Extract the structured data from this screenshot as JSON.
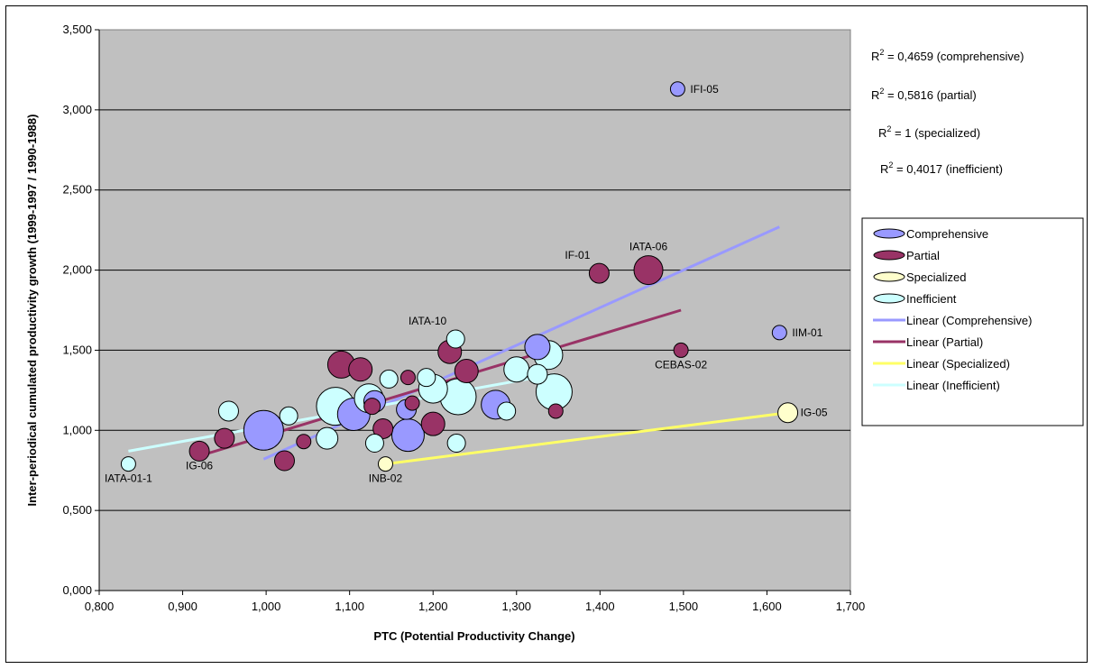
{
  "chart_data": {
    "type": "scatter",
    "xlabel": "PTC (Potential Productivity Change)",
    "ylabel": "Inter-periodical cumulated productivity growth (1999-1997 / 1990-1988)",
    "xlim": [
      0.8,
      1.7
    ],
    "ylim": [
      0.0,
      3.5
    ],
    "x_ticks": [
      "0,800",
      "0,900",
      "1,000",
      "1,100",
      "1,200",
      "1,300",
      "1,400",
      "1,500",
      "1,600",
      "1,700"
    ],
    "y_ticks": [
      "0,000",
      "0,500",
      "1,000",
      "1,500",
      "2,000",
      "2,500",
      "3,000",
      "3,500"
    ],
    "grid": "horizontal",
    "legend_position": "right",
    "colors": {
      "plot_bg": "#c0c0c0",
      "comprehensive": "#9999ff",
      "partial": "#993366",
      "specialized": "#ffffcc",
      "inefficient": "#ccffff",
      "linear_comprehensive": "#9999ff",
      "linear_partial": "#993366",
      "linear_specialized": "#ffff66",
      "linear_inefficient": "#ccffff"
    },
    "series": [
      {
        "name": "Comprehensive",
        "color": "#9999ff",
        "points": [
          {
            "x": 0.997,
            "y": 1.0,
            "size": 22
          },
          {
            "x": 1.105,
            "y": 1.1,
            "size": 18
          },
          {
            "x": 1.13,
            "y": 1.18,
            "size": 12
          },
          {
            "x": 1.168,
            "y": 1.13,
            "size": 11
          },
          {
            "x": 1.17,
            "y": 0.97,
            "size": 18
          },
          {
            "x": 1.275,
            "y": 1.16,
            "size": 16
          },
          {
            "x": 1.325,
            "y": 1.52,
            "size": 14
          },
          {
            "x": 1.493,
            "y": 3.13,
            "size": 8
          },
          {
            "x": 1.615,
            "y": 1.61,
            "size": 8
          }
        ]
      },
      {
        "name": "Partial",
        "color": "#993366",
        "points": [
          {
            "x": 0.92,
            "y": 0.87,
            "size": 11
          },
          {
            "x": 0.95,
            "y": 0.95,
            "size": 11
          },
          {
            "x": 1.022,
            "y": 0.81,
            "size": 11
          },
          {
            "x": 1.045,
            "y": 0.93,
            "size": 8
          },
          {
            "x": 1.09,
            "y": 1.41,
            "size": 15
          },
          {
            "x": 1.113,
            "y": 1.38,
            "size": 13
          },
          {
            "x": 1.127,
            "y": 1.15,
            "size": 9
          },
          {
            "x": 1.14,
            "y": 1.01,
            "size": 11
          },
          {
            "x": 1.17,
            "y": 1.33,
            "size": 8
          },
          {
            "x": 1.175,
            "y": 1.17,
            "size": 8
          },
          {
            "x": 1.2,
            "y": 1.04,
            "size": 13
          },
          {
            "x": 1.22,
            "y": 1.49,
            "size": 13
          },
          {
            "x": 1.24,
            "y": 1.37,
            "size": 13
          },
          {
            "x": 1.347,
            "y": 1.12,
            "size": 8
          },
          {
            "x": 1.399,
            "y": 1.98,
            "size": 11
          },
          {
            "x": 1.458,
            "y": 2.0,
            "size": 16
          },
          {
            "x": 1.497,
            "y": 1.5,
            "size": 8
          }
        ]
      },
      {
        "name": "Specialized",
        "color": "#ffffcc",
        "points": [
          {
            "x": 1.143,
            "y": 0.79,
            "size": 8
          },
          {
            "x": 1.625,
            "y": 1.11,
            "size": 11
          }
        ]
      },
      {
        "name": "Inefficient",
        "color": "#ccffff",
        "points": [
          {
            "x": 0.835,
            "y": 0.79,
            "size": 8
          },
          {
            "x": 0.955,
            "y": 1.12,
            "size": 11
          },
          {
            "x": 1.027,
            "y": 1.09,
            "size": 10
          },
          {
            "x": 1.073,
            "y": 0.95,
            "size": 12
          },
          {
            "x": 1.083,
            "y": 1.15,
            "size": 21
          },
          {
            "x": 1.123,
            "y": 1.2,
            "size": 16
          },
          {
            "x": 1.13,
            "y": 0.92,
            "size": 10
          },
          {
            "x": 1.147,
            "y": 1.32,
            "size": 10
          },
          {
            "x": 1.192,
            "y": 1.33,
            "size": 10
          },
          {
            "x": 1.2,
            "y": 1.26,
            "size": 16
          },
          {
            "x": 1.227,
            "y": 1.57,
            "size": 10
          },
          {
            "x": 1.228,
            "y": 0.92,
            "size": 10
          },
          {
            "x": 1.23,
            "y": 1.21,
            "size": 20
          },
          {
            "x": 1.288,
            "y": 1.12,
            "size": 10
          },
          {
            "x": 1.3,
            "y": 1.38,
            "size": 14
          },
          {
            "x": 1.325,
            "y": 1.35,
            "size": 11
          },
          {
            "x": 1.338,
            "y": 1.47,
            "size": 16
          },
          {
            "x": 1.345,
            "y": 1.24,
            "size": 20
          }
        ]
      }
    ],
    "trendlines": [
      {
        "name": "Linear (Comprehensive)",
        "color": "#9999ff",
        "x": [
          0.997,
          1.615
        ],
        "y": [
          0.82,
          2.27
        ]
      },
      {
        "name": "Linear (Partial)",
        "color": "#993366",
        "x": [
          0.92,
          1.497
        ],
        "y": [
          0.84,
          1.75
        ]
      },
      {
        "name": "Linear (Specialized)",
        "color": "#ffff66",
        "x": [
          1.143,
          1.625
        ],
        "y": [
          0.79,
          1.11
        ]
      },
      {
        "name": "Linear (Inefficient)",
        "color": "#ccffff",
        "x": [
          0.835,
          1.345
        ],
        "y": [
          0.87,
          1.35
        ]
      }
    ],
    "annotations": [
      {
        "text": "IFI-05",
        "x": 1.493,
        "y": 3.13,
        "anchor": "right"
      },
      {
        "text": "IF-01",
        "x": 1.399,
        "y": 1.98,
        "anchor": "above-left"
      },
      {
        "text": "IATA-06",
        "x": 1.458,
        "y": 2.0,
        "anchor": "above"
      },
      {
        "text": "IATA-10",
        "x": 1.227,
        "y": 1.57,
        "anchor": "above-left"
      },
      {
        "text": "IIM-01",
        "x": 1.615,
        "y": 1.61,
        "anchor": "right"
      },
      {
        "text": "CEBAS-02",
        "x": 1.497,
        "y": 1.5,
        "anchor": "below"
      },
      {
        "text": "IG-05",
        "x": 1.625,
        "y": 1.11,
        "anchor": "right"
      },
      {
        "text": "IG-06",
        "x": 0.92,
        "y": 0.87,
        "anchor": "below"
      },
      {
        "text": "IATA-01-1",
        "x": 0.835,
        "y": 0.79,
        "anchor": "below"
      },
      {
        "text": "INB-02",
        "x": 1.143,
        "y": 0.79,
        "anchor": "below"
      }
    ],
    "r2_labels": [
      {
        "prefix": "R",
        "sup": "2",
        "value": " = 0,4659 (comprehensive)"
      },
      {
        "prefix": "R",
        "sup": "2",
        "value": " = 0,5816 (partial)"
      },
      {
        "prefix": "R",
        "sup": "2",
        "value": " = 1 (specialized)"
      },
      {
        "prefix": "R",
        "sup": "2",
        "value": " = 0,4017 (inefficient)"
      }
    ],
    "legend": [
      {
        "label": "Comprehensive",
        "kind": "bubble",
        "color": "#9999ff"
      },
      {
        "label": "Partial",
        "kind": "bubble",
        "color": "#993366"
      },
      {
        "label": "Specialized",
        "kind": "bubble",
        "color": "#ffffcc"
      },
      {
        "label": "Inefficient",
        "kind": "bubble",
        "color": "#ccffff"
      },
      {
        "label": "Linear (Comprehensive)",
        "kind": "line",
        "color": "#9999ff"
      },
      {
        "label": "Linear (Partial)",
        "kind": "line",
        "color": "#993366"
      },
      {
        "label": "Linear (Specialized)",
        "kind": "line",
        "color": "#ffff66"
      },
      {
        "label": "Linear (Inefficient)",
        "kind": "line",
        "color": "#ccffff"
      }
    ]
  }
}
